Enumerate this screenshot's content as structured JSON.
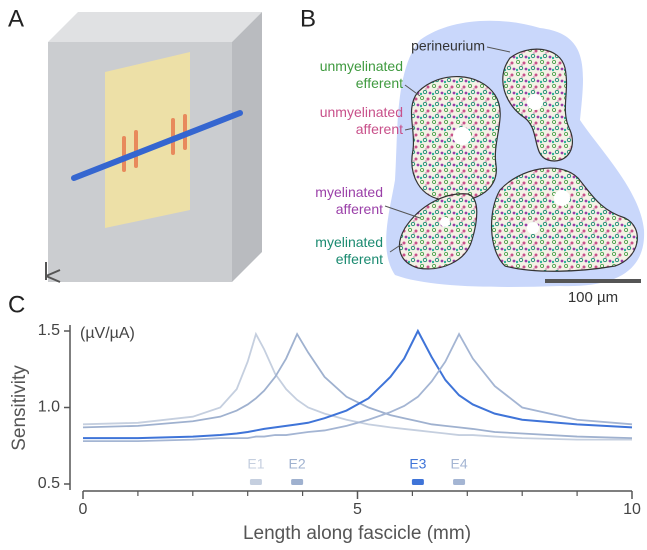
{
  "panels": {
    "a": {
      "label": "A"
    },
    "b": {
      "label": "B",
      "annotations": [
        {
          "lines": [
            "perineurium"
          ],
          "color": "#333333"
        },
        {
          "lines": [
            "unmyelinated",
            "efferent"
          ],
          "color": "#3f9a3f"
        },
        {
          "lines": [
            "unmyelinated",
            "afferent"
          ],
          "color": "#c8508a"
        },
        {
          "lines": [
            "myelinated",
            "afferent"
          ],
          "color": "#9a3fa8"
        },
        {
          "lines": [
            "myelinated",
            "efferent"
          ],
          "color": "#1a8a70"
        }
      ],
      "scale_bar": "100 µm"
    },
    "c": {
      "label": "C"
    }
  },
  "chart_data": {
    "type": "line",
    "ylabel": "Sensitivity",
    "yunit": "(µV/µA)",
    "xlabel": "Length along fascicle (mm)",
    "x": [
      0,
      1,
      2,
      2.5,
      2.8,
      3.0,
      3.15,
      3.3,
      3.5,
      3.7,
      3.9,
      4.1,
      4.4,
      4.8,
      5.2,
      5.6,
      5.85,
      6.1,
      6.35,
      6.6,
      6.85,
      7.1,
      7.5,
      8,
      9,
      10
    ],
    "series": [
      {
        "name": "E1",
        "color": "#c5cfdf",
        "position": 3.15,
        "values": [
          0.89,
          0.9,
          0.94,
          1.0,
          1.12,
          1.3,
          1.48,
          1.38,
          1.22,
          1.12,
          1.05,
          1.0,
          0.96,
          0.92,
          0.89,
          0.87,
          0.86,
          0.85,
          0.84,
          0.83,
          0.82,
          0.82,
          0.81,
          0.8,
          0.79,
          0.79
        ]
      },
      {
        "name": "E2",
        "color": "#9fb1cf",
        "position": 3.9,
        "values": [
          0.87,
          0.88,
          0.91,
          0.94,
          0.98,
          1.02,
          1.06,
          1.11,
          1.2,
          1.32,
          1.48,
          1.36,
          1.2,
          1.07,
          1.0,
          0.95,
          0.93,
          0.91,
          0.89,
          0.88,
          0.87,
          0.86,
          0.84,
          0.83,
          0.81,
          0.8
        ]
      },
      {
        "name": "E3",
        "color": "#3f74d8",
        "position": 6.1,
        "values": [
          0.8,
          0.8,
          0.81,
          0.82,
          0.83,
          0.84,
          0.85,
          0.86,
          0.87,
          0.88,
          0.89,
          0.9,
          0.93,
          0.98,
          1.06,
          1.2,
          1.32,
          1.5,
          1.33,
          1.18,
          1.08,
          1.02,
          0.96,
          0.92,
          0.89,
          0.87
        ]
      },
      {
        "name": "E4",
        "color": "#a4b5d3",
        "position": 6.85,
        "values": [
          0.78,
          0.78,
          0.79,
          0.8,
          0.8,
          0.8,
          0.81,
          0.81,
          0.82,
          0.82,
          0.83,
          0.84,
          0.85,
          0.88,
          0.92,
          0.97,
          1.01,
          1.07,
          1.17,
          1.3,
          1.48,
          1.32,
          1.14,
          1.0,
          0.92,
          0.89
        ]
      }
    ],
    "xlim": [
      0,
      10
    ],
    "xticks": [
      0,
      5,
      10
    ],
    "xminorticks": [
      1,
      2,
      3,
      4,
      6,
      7,
      8,
      9
    ],
    "ylim": [
      0.5,
      1.5
    ],
    "yticks": [
      0.5,
      {
        "value": 1.0,
        "label": "1.0"
      },
      1.5
    ]
  }
}
